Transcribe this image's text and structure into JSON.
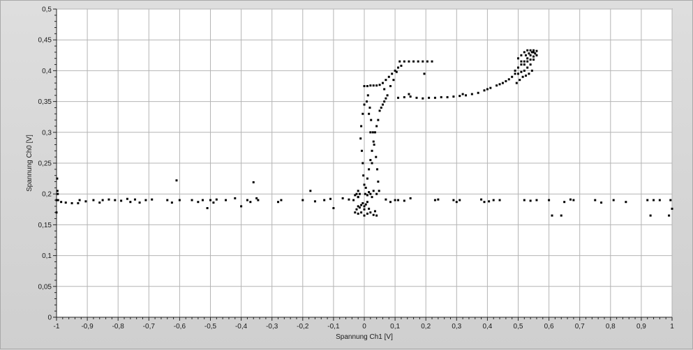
{
  "chart_data": {
    "type": "scatter",
    "title": "",
    "xlabel": "Spannung Ch1 [V]",
    "ylabel": "Spannung Ch0 [V]",
    "xlim": [
      -1,
      1
    ],
    "ylim": [
      0,
      0.5
    ],
    "grid": true,
    "legend": "none",
    "x_ticks": [
      -1,
      -0.9,
      -0.8,
      -0.7,
      -0.6,
      -0.5,
      -0.4,
      -0.3,
      -0.2,
      -0.1,
      0,
      0.1,
      0.2,
      0.3,
      0.4,
      0.5,
      0.6,
      0.7,
      0.8,
      0.9,
      1
    ],
    "x_tick_labels": [
      "-1",
      "-0,9",
      "-0,8",
      "-0,7",
      "-0,6",
      "-0,5",
      "-0,4",
      "-0,3",
      "-0,2",
      "-0,1",
      "0",
      "0,1",
      "0,2",
      "0,3",
      "0,4",
      "0,5",
      "0,6",
      "0,7",
      "0,8",
      "0,9",
      "1"
    ],
    "y_ticks": [
      0,
      0.05,
      0.1,
      0.15,
      0.2,
      0.25,
      0.3,
      0.35,
      0.4,
      0.45,
      0.5
    ],
    "y_tick_labels": [
      "0",
      "0,05",
      "0,1",
      "0,15",
      "0,2",
      "0,25",
      "0,3",
      "0,35",
      "0,4",
      "0,45",
      "0,5"
    ],
    "colors": {
      "plot_background": "#ffffff",
      "grid": "#b4b4b4",
      "points": "#000000",
      "frame": "#cfcfcf"
    },
    "series": [
      {
        "points": [
          [
            -1.0,
            0.19
          ],
          [
            -1.0,
            0.17
          ],
          [
            -0.998,
            0.225
          ],
          [
            -0.997,
            0.205
          ],
          [
            -0.996,
            0.2
          ],
          [
            -0.995,
            0.19
          ],
          [
            -0.985,
            0.187
          ],
          [
            -0.97,
            0.186
          ],
          [
            -0.95,
            0.185
          ],
          [
            -0.93,
            0.185
          ],
          [
            -0.925,
            0.19
          ],
          [
            -0.905,
            0.188
          ],
          [
            -0.88,
            0.19
          ],
          [
            -0.86,
            0.186
          ],
          [
            -0.85,
            0.19
          ],
          [
            -0.83,
            0.191
          ],
          [
            -0.81,
            0.19
          ],
          [
            -0.79,
            0.189
          ],
          [
            -0.77,
            0.192
          ],
          [
            -0.76,
            0.187
          ],
          [
            -0.745,
            0.191
          ],
          [
            -0.73,
            0.186
          ],
          [
            -0.71,
            0.19
          ],
          [
            -0.69,
            0.191
          ],
          [
            -0.64,
            0.19
          ],
          [
            -0.625,
            0.186
          ],
          [
            -0.61,
            0.222
          ],
          [
            -0.6,
            0.19
          ],
          [
            -0.56,
            0.19
          ],
          [
            -0.54,
            0.187
          ],
          [
            -0.525,
            0.19
          ],
          [
            -0.51,
            0.177
          ],
          [
            -0.5,
            0.19
          ],
          [
            -0.49,
            0.186
          ],
          [
            -0.48,
            0.191
          ],
          [
            -0.45,
            0.19
          ],
          [
            -0.42,
            0.193
          ],
          [
            -0.4,
            0.18
          ],
          [
            -0.38,
            0.19
          ],
          [
            -0.37,
            0.187
          ],
          [
            -0.36,
            0.219
          ],
          [
            -0.35,
            0.193
          ],
          [
            -0.345,
            0.19
          ],
          [
            -0.28,
            0.187
          ],
          [
            -0.27,
            0.19
          ],
          [
            -0.2,
            0.19
          ],
          [
            -0.175,
            0.205
          ],
          [
            -0.16,
            0.188
          ],
          [
            -0.13,
            0.19
          ],
          [
            -0.11,
            0.192
          ],
          [
            -0.1,
            0.177
          ],
          [
            -0.07,
            0.193
          ],
          [
            -0.05,
            0.191
          ],
          [
            -0.035,
            0.19
          ],
          [
            -0.02,
            0.195
          ],
          [
            -0.02,
            0.18
          ],
          [
            0.07,
            0.191
          ],
          [
            0.085,
            0.187
          ],
          [
            0.1,
            0.19
          ],
          [
            0.11,
            0.19
          ],
          [
            0.13,
            0.189
          ],
          [
            0.15,
            0.193
          ],
          [
            0.23,
            0.19
          ],
          [
            0.24,
            0.191
          ],
          [
            0.29,
            0.19
          ],
          [
            0.3,
            0.187
          ],
          [
            0.31,
            0.19
          ],
          [
            0.38,
            0.191
          ],
          [
            0.39,
            0.187
          ],
          [
            0.405,
            0.188
          ],
          [
            0.42,
            0.19
          ],
          [
            0.44,
            0.19
          ],
          [
            0.52,
            0.19
          ],
          [
            0.54,
            0.189
          ],
          [
            0.56,
            0.19
          ],
          [
            0.6,
            0.19
          ],
          [
            0.61,
            0.165
          ],
          [
            0.64,
            0.165
          ],
          [
            0.65,
            0.187
          ],
          [
            0.67,
            0.191
          ],
          [
            0.68,
            0.19
          ],
          [
            0.75,
            0.19
          ],
          [
            0.77,
            0.186
          ],
          [
            0.81,
            0.19
          ],
          [
            0.85,
            0.187
          ],
          [
            0.92,
            0.19
          ],
          [
            0.93,
            0.165
          ],
          [
            0.94,
            0.19
          ],
          [
            0.96,
            0.19
          ],
          [
            0.99,
            0.165
          ],
          [
            0.995,
            0.19
          ],
          [
            1.0,
            0.176
          ],
          [
            0.115,
            0.415
          ],
          [
            0.13,
            0.415
          ],
          [
            0.145,
            0.415
          ],
          [
            0.16,
            0.415
          ],
          [
            0.175,
            0.415
          ],
          [
            0.19,
            0.415
          ],
          [
            0.205,
            0.415
          ],
          [
            0.22,
            0.415
          ],
          [
            0.195,
            0.395
          ],
          [
            0.11,
            0.356
          ],
          [
            0.13,
            0.357
          ],
          [
            0.15,
            0.358
          ],
          [
            0.17,
            0.356
          ],
          [
            0.19,
            0.355
          ],
          [
            0.21,
            0.356
          ],
          [
            0.23,
            0.356
          ],
          [
            0.25,
            0.357
          ],
          [
            0.27,
            0.357
          ],
          [
            0.29,
            0.358
          ],
          [
            0.31,
            0.359
          ],
          [
            0.33,
            0.36
          ],
          [
            0.35,
            0.362
          ],
          [
            0.37,
            0.364
          ],
          [
            0.39,
            0.368
          ],
          [
            0.41,
            0.372
          ],
          [
            0.43,
            0.376
          ],
          [
            0.45,
            0.38
          ],
          [
            0.46,
            0.383
          ],
          [
            0.47,
            0.386
          ],
          [
            0.48,
            0.39
          ],
          [
            0.49,
            0.395
          ],
          [
            0.145,
            0.362
          ],
          [
            0.32,
            0.362
          ],
          [
            0.4,
            0.37
          ],
          [
            0.44,
            0.378
          ],
          [
            0.0,
            0.375
          ],
          [
            0.01,
            0.375
          ],
          [
            0.02,
            0.376
          ],
          [
            0.03,
            0.376
          ],
          [
            0.04,
            0.376
          ],
          [
            0.05,
            0.377
          ],
          [
            0.06,
            0.38
          ],
          [
            0.07,
            0.385
          ],
          [
            0.08,
            0.39
          ],
          [
            0.09,
            0.395
          ],
          [
            0.1,
            0.4
          ],
          [
            0.11,
            0.405
          ],
          [
            0.085,
            0.375
          ],
          [
            0.095,
            0.385
          ],
          [
            0.105,
            0.398
          ],
          [
            0.12,
            0.408
          ],
          [
            0.065,
            0.37
          ],
          [
            0.075,
            0.36
          ],
          [
            0.065,
            0.35
          ],
          [
            0.055,
            0.34
          ],
          [
            0.07,
            0.355
          ],
          [
            0.06,
            0.345
          ],
          [
            0.05,
            0.335
          ],
          [
            0.045,
            0.32
          ],
          [
            0.04,
            0.31
          ],
          [
            0.035,
            0.3
          ],
          [
            0.03,
            0.285
          ],
          [
            0.025,
            0.27
          ],
          [
            0.02,
            0.255
          ],
          [
            0.015,
            0.24
          ],
          [
            0.01,
            0.225
          ],
          [
            0.005,
            0.21
          ],
          [
            0.0,
            0.345
          ],
          [
            -0.005,
            0.33
          ],
          [
            -0.01,
            0.31
          ],
          [
            -0.012,
            0.29
          ],
          [
            -0.008,
            0.27
          ],
          [
            -0.005,
            0.25
          ],
          [
            -0.003,
            0.23
          ],
          [
            0.0,
            0.215
          ],
          [
            0.003,
            0.2
          ],
          [
            0.012,
            0.36
          ],
          [
            0.018,
            0.34
          ],
          [
            0.022,
            0.32
          ],
          [
            0.028,
            0.3
          ],
          [
            0.032,
            0.28
          ],
          [
            0.038,
            0.26
          ],
          [
            0.042,
            0.24
          ],
          [
            0.045,
            0.22
          ],
          [
            0.048,
            0.205
          ],
          [
            0.008,
            0.35
          ],
          [
            0.015,
            0.33
          ],
          [
            0.02,
            0.3
          ],
          [
            0.025,
            0.25
          ],
          [
            -0.015,
            0.2
          ],
          [
            -0.02,
            0.205
          ],
          [
            -0.025,
            0.2
          ],
          [
            -0.03,
            0.198
          ],
          [
            -0.02,
            0.195
          ],
          [
            0.01,
            0.198
          ],
          [
            0.02,
            0.2
          ],
          [
            0.03,
            0.205
          ],
          [
            0.04,
            0.2
          ],
          [
            0.025,
            0.195
          ],
          [
            0.015,
            0.203
          ],
          [
            -0.03,
            0.17
          ],
          [
            -0.02,
            0.168
          ],
          [
            -0.01,
            0.17
          ],
          [
            0.0,
            0.165
          ],
          [
            0.01,
            0.168
          ],
          [
            0.02,
            0.17
          ],
          [
            0.03,
            0.166
          ],
          [
            0.04,
            0.165
          ],
          [
            -0.025,
            0.175
          ],
          [
            0.035,
            0.172
          ],
          [
            -0.015,
            0.178
          ],
          [
            0.015,
            0.176
          ],
          [
            0.0,
            0.18
          ],
          [
            -0.005,
            0.185
          ],
          [
            0.005,
            0.183
          ],
          [
            -0.01,
            0.182
          ],
          [
            0.01,
            0.187
          ],
          [
            0.0,
            0.175
          ],
          [
            0.49,
            0.4
          ],
          [
            0.5,
            0.405
          ],
          [
            0.51,
            0.41
          ],
          [
            0.52,
            0.415
          ],
          [
            0.53,
            0.42
          ],
          [
            0.54,
            0.425
          ],
          [
            0.55,
            0.43
          ],
          [
            0.5,
            0.395
          ],
          [
            0.51,
            0.398
          ],
          [
            0.52,
            0.4
          ],
          [
            0.53,
            0.405
          ],
          [
            0.54,
            0.41
          ],
          [
            0.55,
            0.418
          ],
          [
            0.56,
            0.425
          ],
          [
            0.5,
            0.42
          ],
          [
            0.51,
            0.425
          ],
          [
            0.52,
            0.43
          ],
          [
            0.53,
            0.433
          ],
          [
            0.54,
            0.433
          ],
          [
            0.55,
            0.433
          ],
          [
            0.56,
            0.432
          ],
          [
            0.505,
            0.385
          ],
          [
            0.515,
            0.39
          ],
          [
            0.525,
            0.392
          ],
          [
            0.535,
            0.395
          ],
          [
            0.545,
            0.4
          ],
          [
            0.495,
            0.38
          ],
          [
            0.51,
            0.415
          ],
          [
            0.52,
            0.41
          ],
          [
            0.53,
            0.415
          ],
          [
            0.54,
            0.418
          ],
          [
            0.55,
            0.423
          ],
          [
            0.525,
            0.425
          ],
          [
            0.535,
            0.428
          ],
          [
            0.545,
            0.43
          ],
          [
            0.555,
            0.428
          ]
        ]
      }
    ]
  }
}
